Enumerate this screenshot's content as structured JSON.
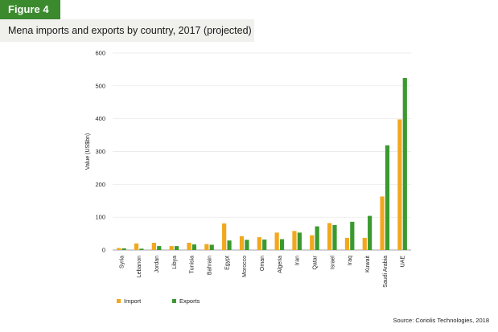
{
  "figure_label": "Figure 4",
  "title": "Mena imports and exports by country, 2017 (projected)",
  "source": "Source: Coriolis Technologies, 2018",
  "colors": {
    "import": "#f2a81d",
    "exports": "#3b9a2f",
    "badge": "#3b8a2e"
  },
  "chart_data": {
    "type": "bar",
    "title": "Mena imports and exports by country, 2017 (projected)",
    "xlabel": "",
    "ylabel": "Value (US$bn)",
    "ylim": [
      0,
      600
    ],
    "yticks": [
      0,
      100,
      200,
      300,
      400,
      500,
      600
    ],
    "grid": true,
    "legend": "bottom-left",
    "categories": [
      "Syria",
      "Lebanon",
      "Jordan",
      "Libya",
      "Tunisia",
      "Bahrain",
      "Egypt",
      "Morocco",
      "Oman",
      "Algeria",
      "Iran",
      "Qatar",
      "Israel",
      "Iraq",
      "Kuwait",
      "Saudi Arabia",
      "UAE"
    ],
    "series": [
      {
        "name": "Import",
        "values": [
          6,
          20,
          22,
          12,
          22,
          18,
          81,
          42,
          39,
          53,
          58,
          45,
          82,
          37,
          37,
          163,
          398
        ]
      },
      {
        "name": "Exports",
        "values": [
          5,
          4,
          12,
          12,
          17,
          16,
          29,
          31,
          32,
          33,
          53,
          72,
          76,
          86,
          104,
          319,
          524
        ]
      }
    ]
  }
}
